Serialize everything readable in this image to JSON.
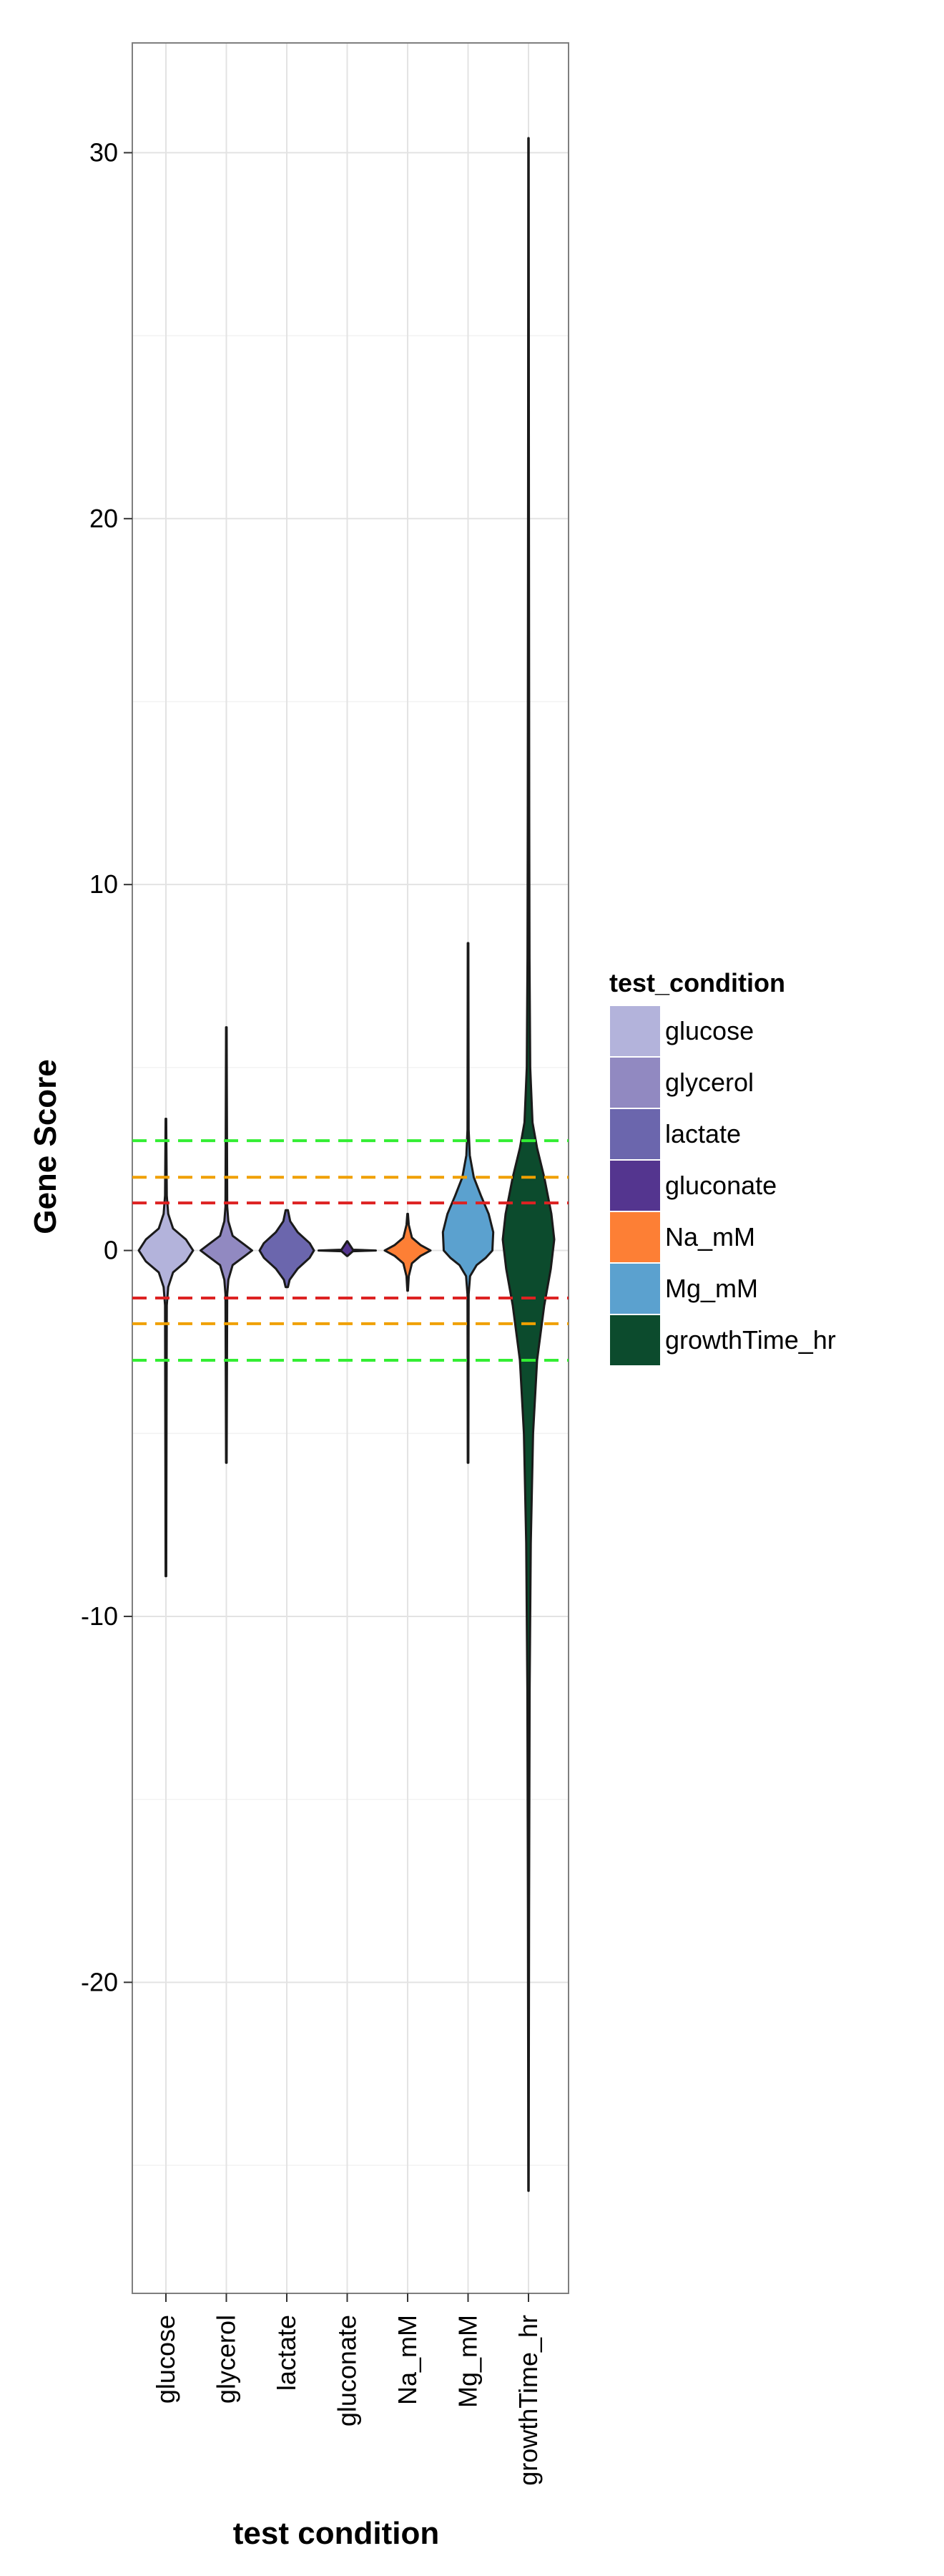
{
  "chart_data": {
    "type": "violin",
    "xlabel": "test condition",
    "ylabel": "Gene Score",
    "ylim": [
      -28.5,
      33
    ],
    "yticks": [
      -20,
      -10,
      0,
      10,
      20,
      30
    ],
    "categories": [
      "glucose",
      "glycerol",
      "lactate",
      "gluconate",
      "Na_mM",
      "Mg_mM",
      "growthTime_hr"
    ],
    "grid": true,
    "series": [
      {
        "name": "glucose",
        "color": "#b3b3db",
        "min": -8.9,
        "max": 3.6,
        "center": 0,
        "profile": [
          [
            -8.9,
            0.01
          ],
          [
            -1.5,
            0.03
          ],
          [
            -1.0,
            0.08
          ],
          [
            -0.6,
            0.25
          ],
          [
            -0.3,
            0.7
          ],
          [
            0,
            0.95
          ],
          [
            0.3,
            0.7
          ],
          [
            0.6,
            0.25
          ],
          [
            1.0,
            0.08
          ],
          [
            1.5,
            0.03
          ],
          [
            3.6,
            0.01
          ]
        ]
      },
      {
        "name": "glycerol",
        "color": "#9189c1",
        "min": -5.8,
        "max": 6.1,
        "center": 0,
        "profile": [
          [
            -5.8,
            0.01
          ],
          [
            -1.2,
            0.03
          ],
          [
            -0.8,
            0.07
          ],
          [
            -0.4,
            0.22
          ],
          [
            -0.15,
            0.65
          ],
          [
            0,
            0.9
          ],
          [
            0.15,
            0.65
          ],
          [
            0.4,
            0.22
          ],
          [
            0.8,
            0.07
          ],
          [
            1.2,
            0.03
          ],
          [
            6.1,
            0.01
          ]
        ]
      },
      {
        "name": "lactate",
        "color": "#6b66ad",
        "min": -1.0,
        "max": 1.1,
        "center": 0,
        "profile": [
          [
            -1.0,
            0.04
          ],
          [
            -0.8,
            0.1
          ],
          [
            -0.5,
            0.38
          ],
          [
            -0.2,
            0.8
          ],
          [
            0,
            0.95
          ],
          [
            0.2,
            0.8
          ],
          [
            0.5,
            0.38
          ],
          [
            0.8,
            0.12
          ],
          [
            1.1,
            0.04
          ]
        ]
      },
      {
        "name": "gluconate",
        "color": "#54358f",
        "min": -0.15,
        "max": 0.25,
        "center": 0,
        "profile": [
          [
            -0.15,
            0.01
          ],
          [
            -0.02,
            0.2
          ],
          [
            0,
            1.0
          ],
          [
            0.02,
            0.2
          ],
          [
            0.25,
            0.01
          ]
        ]
      },
      {
        "name": "Na_mM",
        "color": "#fd7f35",
        "min": -1.1,
        "max": 1.0,
        "center": 0,
        "profile": [
          [
            -1.1,
            0.01
          ],
          [
            -0.7,
            0.04
          ],
          [
            -0.35,
            0.15
          ],
          [
            -0.15,
            0.45
          ],
          [
            0,
            0.8
          ],
          [
            0.15,
            0.45
          ],
          [
            0.35,
            0.15
          ],
          [
            0.7,
            0.04
          ],
          [
            1.0,
            0.01
          ]
        ]
      },
      {
        "name": "Mg_mM",
        "color": "#5ba1cf",
        "min": -5.8,
        "max": 8.4,
        "center": 0,
        "profile": [
          [
            -5.8,
            0.01
          ],
          [
            -1.2,
            0.02
          ],
          [
            -0.7,
            0.07
          ],
          [
            -0.4,
            0.3
          ],
          [
            -0.2,
            0.62
          ],
          [
            0,
            0.85
          ],
          [
            0.5,
            0.88
          ],
          [
            1.0,
            0.72
          ],
          [
            1.5,
            0.45
          ],
          [
            2.0,
            0.2
          ],
          [
            2.6,
            0.06
          ],
          [
            3.3,
            0.02
          ],
          [
            8.4,
            0.01
          ]
        ]
      },
      {
        "name": "growthTime_hr",
        "color": "#0c4b2d",
        "min": -25.7,
        "max": 30.4,
        "center": 0,
        "profile": [
          [
            -25.7,
            0.005
          ],
          [
            -18,
            0.02
          ],
          [
            -12,
            0.04
          ],
          [
            -8,
            0.08
          ],
          [
            -5,
            0.16
          ],
          [
            -3,
            0.3
          ],
          [
            -1.5,
            0.55
          ],
          [
            -0.5,
            0.78
          ],
          [
            0.3,
            0.9
          ],
          [
            1.0,
            0.8
          ],
          [
            2.0,
            0.55
          ],
          [
            2.8,
            0.3
          ],
          [
            3.5,
            0.14
          ],
          [
            5,
            0.06
          ],
          [
            8,
            0.035
          ],
          [
            12,
            0.025
          ],
          [
            20,
            0.015
          ],
          [
            30.4,
            0.005
          ]
        ]
      }
    ],
    "reference_lines": [
      {
        "y": 3.0,
        "color": "#33ee33"
      },
      {
        "y": 2.0,
        "color": "#f0a000"
      },
      {
        "y": 1.3,
        "color": "#dd2222"
      },
      {
        "y": -1.3,
        "color": "#dd2222"
      },
      {
        "y": -2.0,
        "color": "#f0a000"
      },
      {
        "y": -3.0,
        "color": "#33ee33"
      }
    ],
    "legend": {
      "title": "test_condition",
      "position": "right",
      "items": [
        {
          "label": "glucose",
          "color": "#b3b3db"
        },
        {
          "label": "glycerol",
          "color": "#9189c1"
        },
        {
          "label": "lactate",
          "color": "#6b66ad"
        },
        {
          "label": "gluconate",
          "color": "#54358f"
        },
        {
          "label": "Na_mM",
          "color": "#fd7f35"
        },
        {
          "label": "Mg_mM",
          "color": "#5ba1cf"
        },
        {
          "label": "growthTime_hr",
          "color": "#0c4b2d"
        }
      ]
    }
  }
}
